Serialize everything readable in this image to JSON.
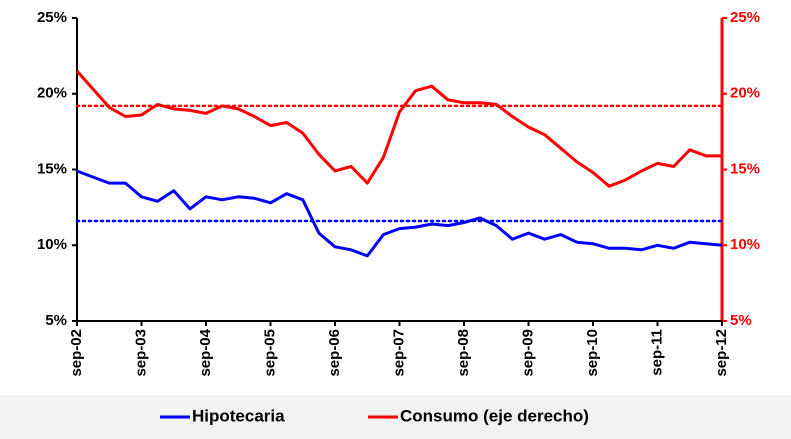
{
  "chart_data": {
    "type": "line",
    "categories": [
      "sep-02",
      null,
      null,
      null,
      "sep-03",
      null,
      null,
      null,
      "sep-04",
      null,
      null,
      null,
      "sep-05",
      null,
      null,
      null,
      "sep-06",
      null,
      null,
      null,
      "sep-07",
      null,
      null,
      null,
      "sep-08",
      null,
      null,
      null,
      "sep-09",
      null,
      null,
      null,
      "sep-10",
      null,
      null,
      null,
      "sep-11",
      null,
      null,
      null,
      "sep-12"
    ],
    "series": [
      {
        "name": "Hipotecaria",
        "color": "#0000ff",
        "axis": "y",
        "values": [
          14.9,
          14.5,
          14.1,
          14.1,
          13.2,
          12.9,
          13.6,
          12.4,
          13.2,
          13.0,
          13.2,
          13.1,
          12.8,
          13.4,
          13.0,
          10.8,
          9.9,
          9.7,
          9.3,
          10.7,
          11.1,
          11.2,
          11.4,
          11.3,
          11.5,
          11.8,
          11.3,
          10.4,
          10.8,
          10.4,
          10.7,
          10.2,
          10.1,
          9.8,
          9.8,
          9.7,
          10.0,
          9.8,
          10.2,
          10.1,
          10.0
        ]
      },
      {
        "name": "Consumo (eje derecho)",
        "color": "#ff0000",
        "axis": "y2",
        "values": [
          21.5,
          20.3,
          19.1,
          18.5,
          18.6,
          19.3,
          19.0,
          18.9,
          18.7,
          19.2,
          19.0,
          18.5,
          17.9,
          18.1,
          17.4,
          16.0,
          14.9,
          15.2,
          14.1,
          15.8,
          18.8,
          20.2,
          20.5,
          19.6,
          19.4,
          19.4,
          19.3,
          18.5,
          17.8,
          17.3,
          16.4,
          15.5,
          14.8,
          13.9,
          14.3,
          14.9,
          15.4,
          15.2,
          16.3,
          15.9,
          15.9
        ]
      }
    ],
    "reference_lines": [
      {
        "axis": "y",
        "value": 11.6,
        "color": "#0000ff"
      },
      {
        "axis": "y2",
        "value": 19.2,
        "color": "#ff0000"
      }
    ],
    "ylim": [
      5,
      25
    ],
    "yticks": [
      {
        "value": 5,
        "label": "5%"
      },
      {
        "value": 10,
        "label": "10%"
      },
      {
        "value": 15,
        "label": "15%"
      },
      {
        "value": 20,
        "label": "20%"
      },
      {
        "value": 25,
        "label": "25%"
      }
    ],
    "y2lim": [
      5,
      25
    ],
    "y2ticks": [
      {
        "value": 5,
        "label": "5%"
      },
      {
        "value": 10,
        "label": "10%"
      },
      {
        "value": 15,
        "label": "15%"
      },
      {
        "value": 20,
        "label": "20%"
      },
      {
        "value": 25,
        "label": "25%"
      }
    ],
    "y2color": "#ff0000",
    "legend": "bottom"
  }
}
